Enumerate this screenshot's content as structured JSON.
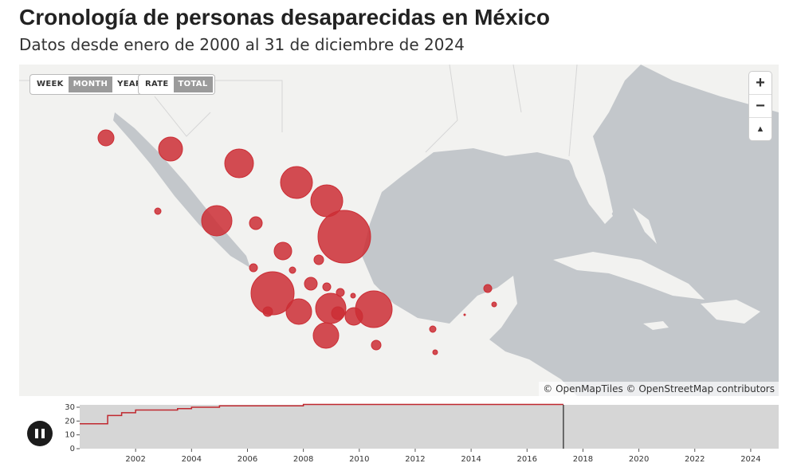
{
  "header": {
    "title": "Cronología de personas desaparecidas en México",
    "subtitle": "Datos desde enero de 2000 al 31 de diciembre de 2024"
  },
  "controls": {
    "period": {
      "options": [
        "WEEK",
        "MONTH",
        "YEAR"
      ],
      "selected": "MONTH"
    },
    "measure": {
      "options": [
        "RATE",
        "TOTAL"
      ],
      "selected": "TOTAL"
    },
    "zoom_in": "+",
    "zoom_out": "−",
    "compass": "▲"
  },
  "attribution": "© OpenMapTiles © OpenStreetMap contributors",
  "colors": {
    "bubble": "#cc2e35",
    "land": "#f2f2f0",
    "water": "#c3c7cb",
    "timeline_line": "#c0282f"
  },
  "play_button": {
    "icon": "pause-icon",
    "state": "playing"
  },
  "chart_data": {
    "type": "line",
    "x_ticks": [
      "2002",
      "2004",
      "2006",
      "2008",
      "2010",
      "2012",
      "2014",
      "2016",
      "2018",
      "2020",
      "2022",
      "2024"
    ],
    "y_ticks": [
      0,
      10,
      20,
      30
    ],
    "ylim": [
      0,
      30
    ],
    "xlim": [
      2000,
      2025
    ],
    "current_year": 2017.3,
    "series": [
      {
        "step": true,
        "x": [
          2000.0,
          2000.7,
          2001.0,
          2001.5,
          2002.0,
          2003.5,
          2004.0,
          2005.0,
          2008.0,
          2017.3
        ],
        "y": [
          18,
          18,
          24,
          26,
          28,
          29,
          30,
          31,
          32,
          32
        ]
      }
    ]
  }
}
